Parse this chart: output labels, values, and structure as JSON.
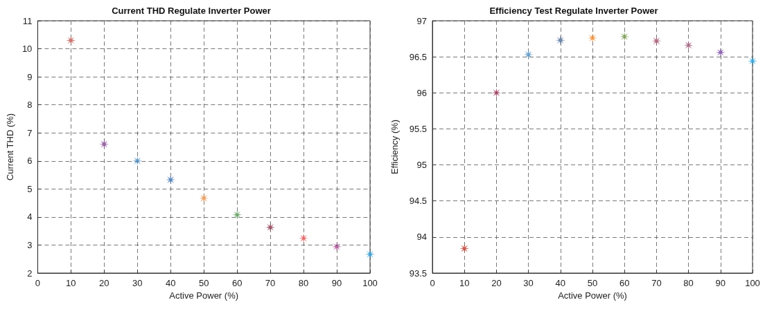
{
  "chart_data": [
    {
      "type": "scatter",
      "title": "Current THD Regulate Inverter Power",
      "xlabel": "Active Power (%)",
      "ylabel": "Current THD (%)",
      "x": [
        10,
        20,
        30,
        40,
        50,
        60,
        70,
        80,
        90,
        100
      ],
      "series": [
        {
          "values": [
            10.3,
            6.6,
            6.0,
            5.33,
            4.67,
            4.08,
            3.63,
            3.24,
            2.94,
            2.67
          ],
          "colors": [
            "#c0504d",
            "#7e3f8e",
            "#4d8ec4",
            "#3d72b0",
            "#e8914a",
            "#5a9e5a",
            "#8b2f4a",
            "#e85a5a",
            "#a2408f",
            "#2a9fd8"
          ]
        }
      ],
      "xlim": [
        0,
        100
      ],
      "xticks": [
        0,
        10,
        20,
        30,
        40,
        50,
        60,
        70,
        80,
        90,
        100
      ],
      "ylim": [
        2,
        11
      ],
      "yticks": [
        2,
        3,
        4,
        5,
        6,
        7,
        8,
        9,
        10,
        11
      ],
      "grid": true,
      "marker": "star"
    },
    {
      "type": "scatter",
      "title": "Efficiency Test Regulate Inverter Power",
      "xlabel": "Active Power (%)",
      "ylabel": "Efficiency (%)",
      "x": [
        10,
        20,
        30,
        40,
        50,
        60,
        70,
        80,
        90,
        100
      ],
      "series": [
        {
          "values": [
            93.84,
            96.0,
            96.53,
            96.73,
            96.76,
            96.78,
            96.72,
            96.66,
            96.56,
            96.44
          ],
          "colors": [
            "#c0392b",
            "#a33b5c",
            "#4a8fc4",
            "#4a6a9a",
            "#f08c30",
            "#7a9a50",
            "#a04a6a",
            "#a05a7a",
            "#7a4aa8",
            "#2aa8e0"
          ]
        }
      ],
      "xlim": [
        0,
        100
      ],
      "xticks": [
        0,
        10,
        20,
        30,
        40,
        50,
        60,
        70,
        80,
        90,
        100
      ],
      "ylim": [
        93.5,
        97
      ],
      "yticks": [
        93.5,
        94,
        94.5,
        95,
        95.5,
        96,
        96.5,
        97
      ],
      "grid": true,
      "marker": "star"
    }
  ]
}
